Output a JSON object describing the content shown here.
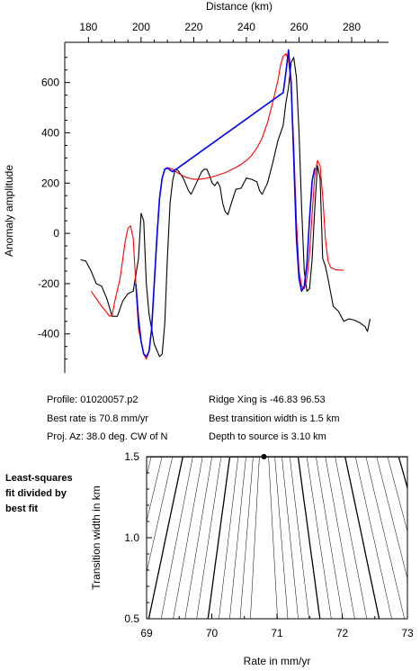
{
  "chart_data": [
    {
      "type": "line",
      "xlabel": "Distance (km)",
      "ylabel": "Anomaly amplitude",
      "xlim": [
        171,
        294
      ],
      "ylim": [
        -555,
        760
      ],
      "x_ticks": [
        180,
        200,
        220,
        240,
        260,
        280
      ],
      "y_ticks": [
        -400,
        -200,
        0,
        200,
        400,
        600
      ],
      "grid": false,
      "series": [
        {
          "color": "#000000",
          "points": [
            [
              177,
              -105
            ],
            [
              179,
              -110
            ],
            [
              181,
              -150
            ],
            [
              183,
              -200
            ],
            [
              185,
              -210
            ],
            [
              187,
              -260
            ],
            [
              189,
              -330
            ],
            [
              191,
              -330
            ],
            [
              193,
              -270
            ],
            [
              195,
              -240
            ],
            [
              197,
              -230
            ],
            [
              199,
              -100
            ],
            [
              200,
              80
            ],
            [
              201,
              50
            ],
            [
              202,
              -200
            ],
            [
              203,
              -320
            ],
            [
              205,
              -440
            ],
            [
              207,
              -490
            ],
            [
              208,
              -480
            ],
            [
              209,
              -360
            ],
            [
              210,
              -100
            ],
            [
              211,
              120
            ],
            [
              212,
              210
            ],
            [
              213,
              255
            ],
            [
              214,
              250
            ],
            [
              216,
              220
            ],
            [
              218,
              170
            ],
            [
              219,
              155
            ],
            [
              221,
              200
            ],
            [
              223,
              245
            ],
            [
              224,
              255
            ],
            [
              225,
              255
            ],
            [
              226,
              230
            ],
            [
              227,
              200
            ],
            [
              228,
              190
            ],
            [
              229,
              205
            ],
            [
              230,
              185
            ],
            [
              231,
              120
            ],
            [
              232,
              85
            ],
            [
              233,
              75
            ],
            [
              234,
              110
            ],
            [
              236,
              175
            ],
            [
              238,
              180
            ],
            [
              240,
              220
            ],
            [
              242,
              215
            ],
            [
              244,
              205
            ],
            [
              245,
              170
            ],
            [
              246,
              155
            ],
            [
              248,
              200
            ],
            [
              250,
              280
            ],
            [
              252,
              370
            ],
            [
              254,
              430
            ],
            [
              255,
              520
            ],
            [
              256,
              580
            ],
            [
              257,
              680
            ],
            [
              258,
              700
            ],
            [
              259,
              620
            ],
            [
              260,
              400
            ],
            [
              261,
              100
            ],
            [
              262,
              -150
            ],
            [
              263,
              -230
            ],
            [
              264,
              -220
            ],
            [
              265,
              -100
            ],
            [
              266,
              100
            ],
            [
              267,
              270
            ],
            [
              268,
              220
            ],
            [
              269,
              -100
            ],
            [
              270,
              -130
            ],
            [
              271,
              -180
            ],
            [
              273,
              -290
            ],
            [
              275,
              -310
            ],
            [
              277,
              -350
            ],
            [
              279,
              -340
            ],
            [
              281,
              -345
            ],
            [
              283,
              -355
            ],
            [
              285,
              -370
            ],
            [
              286,
              -390
            ],
            [
              287,
              -340
            ]
          ]
        },
        {
          "color": "#ff0000",
          "points": [
            [
              181,
              -230
            ],
            [
              183,
              -260
            ],
            [
              185,
              -290
            ],
            [
              187,
              -315
            ],
            [
              188,
              -330
            ],
            [
              189,
              -325
            ],
            [
              190,
              -270
            ],
            [
              192,
              -180
            ],
            [
              194,
              -30
            ],
            [
              195,
              20
            ],
            [
              196,
              30
            ],
            [
              197,
              -20
            ],
            [
              198,
              -200
            ],
            [
              199,
              -380
            ],
            [
              201,
              -480
            ],
            [
              202,
              -500
            ],
            [
              203,
              -470
            ],
            [
              204,
              -380
            ],
            [
              205,
              -200
            ],
            [
              206,
              -20
            ],
            [
              207,
              140
            ],
            [
              208,
              220
            ],
            [
              209,
              255
            ],
            [
              210,
              262
            ],
            [
              212,
              255
            ],
            [
              214,
              240
            ],
            [
              216,
              228
            ],
            [
              218,
              220
            ],
            [
              220,
              215
            ],
            [
              222,
              215
            ],
            [
              224,
              218
            ],
            [
              226,
              222
            ],
            [
              228,
              228
            ],
            [
              230,
              235
            ],
            [
              232,
              242
            ],
            [
              234,
              252
            ],
            [
              236,
              262
            ],
            [
              238,
              275
            ],
            [
              240,
              290
            ],
            [
              242,
              310
            ],
            [
              244,
              340
            ],
            [
              246,
              380
            ],
            [
              248,
              440
            ],
            [
              250,
              520
            ],
            [
              252,
              610
            ],
            [
              253,
              670
            ],
            [
              254,
              705
            ],
            [
              255,
              715
            ],
            [
              256,
              690
            ],
            [
              257,
              580
            ],
            [
              258,
              350
            ],
            [
              259,
              50
            ],
            [
              260,
              -150
            ],
            [
              261,
              -210
            ],
            [
              262,
              -220
            ],
            [
              263,
              -180
            ],
            [
              264,
              -80
            ],
            [
              265,
              80
            ],
            [
              266,
              230
            ],
            [
              267,
              290
            ],
            [
              268,
              270
            ],
            [
              269,
              150
            ],
            [
              270,
              -20
            ],
            [
              271,
              -110
            ],
            [
              272,
              -135
            ],
            [
              274,
              -145
            ],
            [
              277,
              -147
            ]
          ]
        },
        {
          "color": "#0000ff",
          "points": [
            [
              198,
              -200
            ],
            [
              199,
              -340
            ],
            [
              200,
              -430
            ],
            [
              201,
              -480
            ],
            [
              202,
              -490
            ],
            [
              203,
              -470
            ],
            [
              204,
              -380
            ],
            [
              205,
              -200
            ],
            [
              206,
              -20
            ],
            [
              207,
              140
            ],
            [
              208,
              220
            ],
            [
              209,
              255
            ],
            [
              210,
              260
            ],
            [
              211,
              252
            ],
            [
              212,
              245
            ],
            [
              254,
              560
            ],
            [
              255,
              640
            ],
            [
              256,
              730
            ],
            [
              257,
              600
            ],
            [
              258,
              300
            ],
            [
              259,
              -20
            ],
            [
              260,
              -180
            ],
            [
              261,
              -230
            ],
            [
              262,
              -210
            ],
            [
              263,
              -120
            ],
            [
              264,
              60
            ],
            [
              265,
              210
            ],
            [
              266,
              260
            ]
          ]
        }
      ]
    },
    {
      "type": "contour",
      "xlabel": "Rate in mm/yr",
      "ylabel": "Transition width in km",
      "xlim": [
        69,
        73
      ],
      "ylim": [
        0.5,
        1.5
      ],
      "x_ticks": [
        69,
        70,
        71,
        72,
        73
      ],
      "y_ticks": [
        0.5,
        1.0,
        1.5
      ],
      "best_fit": [
        70.8,
        1.5
      ],
      "side_label": [
        "Least-squares",
        "fit divided by",
        "best fit"
      ]
    }
  ],
  "info": {
    "profile": "Profile: 01020057.p2",
    "best_rate": "Best rate is 70.8 mm/yr",
    "proj_az": "Proj. Az: 38.0 deg. CW of N",
    "ridge_xing": "Ridge Xing is -46.83 96.53",
    "best_width": "Best transition width is 1.5 km",
    "depth": "Depth to source is   3.10 km"
  }
}
